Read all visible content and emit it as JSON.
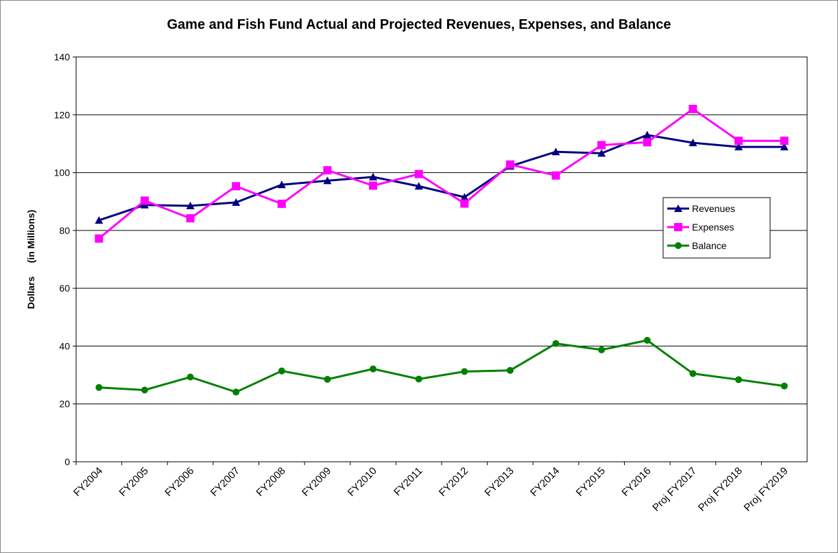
{
  "chart_data": {
    "type": "line",
    "title": "Game and Fish Fund Actual and Projected Revenues, Expenses, and Balance",
    "y_label": "Dollars     (in Millions)",
    "categories": [
      "FY2004",
      "FY2005",
      "FY2006",
      "FY2007",
      "FY2008",
      "FY2009",
      "FY2010",
      "FY2011",
      "FY2012",
      "FY2013",
      "FY2014",
      "FY2015",
      "FY2016",
      "Proj FY2017",
      "Proj FY2018",
      "Proj FY2019"
    ],
    "series": [
      {
        "name": "Revenues",
        "color": "#000080",
        "marker": "triangle",
        "values": [
          83.5,
          88.8,
          88.5,
          89.7,
          95.8,
          97.2,
          98.5,
          95.3,
          91.5,
          102.2,
          107.2,
          106.7,
          113.0,
          110.3,
          108.9,
          108.9
        ]
      },
      {
        "name": "Expenses",
        "color": "#ff00ff",
        "marker": "square",
        "values": [
          77.2,
          90.3,
          84.2,
          95.3,
          89.2,
          100.8,
          95.5,
          99.5,
          89.3,
          102.8,
          99.0,
          109.5,
          110.5,
          122.0,
          111.0,
          111.0
        ]
      },
      {
        "name": "Balance",
        "color": "#008000",
        "marker": "circle",
        "values": [
          25.7,
          24.8,
          29.3,
          24.1,
          31.4,
          28.5,
          32.1,
          28.6,
          31.2,
          31.6,
          40.9,
          38.7,
          42.0,
          30.5,
          28.4,
          26.2
        ]
      }
    ],
    "ylim": [
      0,
      140
    ],
    "yticks": [
      0,
      20,
      40,
      60,
      80,
      100,
      120,
      140
    ],
    "grid": true,
    "legend": "right"
  }
}
